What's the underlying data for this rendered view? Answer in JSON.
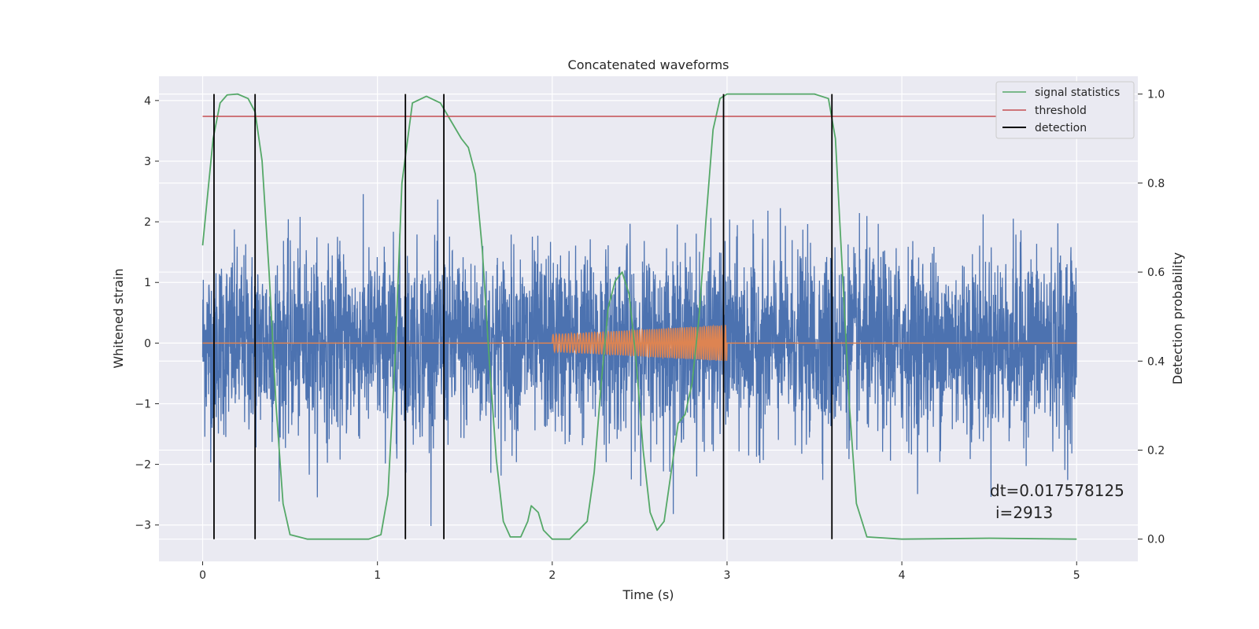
{
  "chart_data": {
    "type": "line",
    "title": "Concatenated waveforms",
    "xlabel": "Time (s)",
    "ylabel": "Whitened strain",
    "y2label": "Detection probability",
    "xlim": [
      -0.25,
      5.35
    ],
    "ylim": [
      -3.6,
      4.4
    ],
    "y2lim": [
      -0.05,
      1.04
    ],
    "x_ticks": [
      0,
      1,
      2,
      3,
      4,
      5
    ],
    "y_ticks": [
      -3,
      -2,
      -1,
      0,
      1,
      2,
      3,
      4
    ],
    "y2_ticks": [
      0.0,
      0.2,
      0.4,
      0.6,
      0.8,
      1.0
    ],
    "x_tick_labels": [
      "0",
      "1",
      "2",
      "3",
      "4",
      "5"
    ],
    "y_tick_labels": [
      "−3",
      "−2",
      "−1",
      "0",
      "1",
      "2",
      "3",
      "4"
    ],
    "y2_tick_labels": [
      "0.0",
      "0.2",
      "0.4",
      "0.6",
      "0.8",
      "1.0"
    ],
    "grid": true,
    "legend_position": "top-right",
    "strain": {
      "x_range": [
        0,
        5
      ],
      "noise_std": 0.75,
      "color": "#4c72b0"
    },
    "injected_signal": {
      "x_range": [
        2.0,
        3.0
      ],
      "amplitude_start": 0.14,
      "amplitude_end": 0.3,
      "color": "#dd8452",
      "baseline_x_range": [
        0,
        5
      ]
    },
    "series": [
      {
        "name": "signal statistics",
        "color": "#55a868",
        "axis": "right",
        "x": [
          0.0,
          0.03,
          0.06,
          0.1,
          0.14,
          0.2,
          0.26,
          0.3,
          0.34,
          0.38,
          0.42,
          0.46,
          0.5,
          0.6,
          0.8,
          0.95,
          1.02,
          1.06,
          1.1,
          1.14,
          1.2,
          1.28,
          1.36,
          1.42,
          1.48,
          1.52,
          1.56,
          1.6,
          1.64,
          1.68,
          1.72,
          1.76,
          1.82,
          1.86,
          1.88,
          1.92,
          1.95,
          2.0,
          2.1,
          2.2,
          2.24,
          2.28,
          2.32,
          2.36,
          2.4,
          2.44,
          2.48,
          2.52,
          2.56,
          2.6,
          2.64,
          2.68,
          2.72,
          2.76,
          2.8,
          2.84,
          2.88,
          2.92,
          2.96,
          3.0,
          3.1,
          3.3,
          3.5,
          3.58,
          3.62,
          3.66,
          3.7,
          3.74,
          3.8,
          4.0,
          4.5,
          5.0
        ],
        "values": [
          0.66,
          0.78,
          0.9,
          0.98,
          0.998,
          1.0,
          0.99,
          0.96,
          0.85,
          0.6,
          0.3,
          0.08,
          0.01,
          0.0,
          0.0,
          0.0,
          0.01,
          0.1,
          0.4,
          0.8,
          0.98,
          0.995,
          0.98,
          0.94,
          0.9,
          0.88,
          0.82,
          0.65,
          0.4,
          0.18,
          0.04,
          0.005,
          0.005,
          0.04,
          0.075,
          0.06,
          0.02,
          0.0,
          0.0,
          0.04,
          0.15,
          0.35,
          0.52,
          0.58,
          0.6,
          0.55,
          0.4,
          0.2,
          0.06,
          0.02,
          0.04,
          0.15,
          0.26,
          0.28,
          0.35,
          0.5,
          0.72,
          0.92,
          0.99,
          1.0,
          1.0,
          1.0,
          1.0,
          0.99,
          0.9,
          0.6,
          0.3,
          0.08,
          0.005,
          0.0,
          0.002,
          0.0
        ]
      },
      {
        "name": "threshold",
        "color": "#c44e52",
        "axis": "right",
        "x": [
          0,
          5
        ],
        "values": [
          0.95,
          0.95
        ]
      },
      {
        "name": "detection",
        "color": "#000000",
        "axis": "right",
        "x": [
          0.065,
          0.3,
          1.16,
          1.38,
          2.98,
          3.6
        ],
        "range": [
          0.0,
          1.0
        ]
      }
    ],
    "annotation": {
      "line1": "dt=0.017578125",
      "line2": "i=2913"
    }
  }
}
